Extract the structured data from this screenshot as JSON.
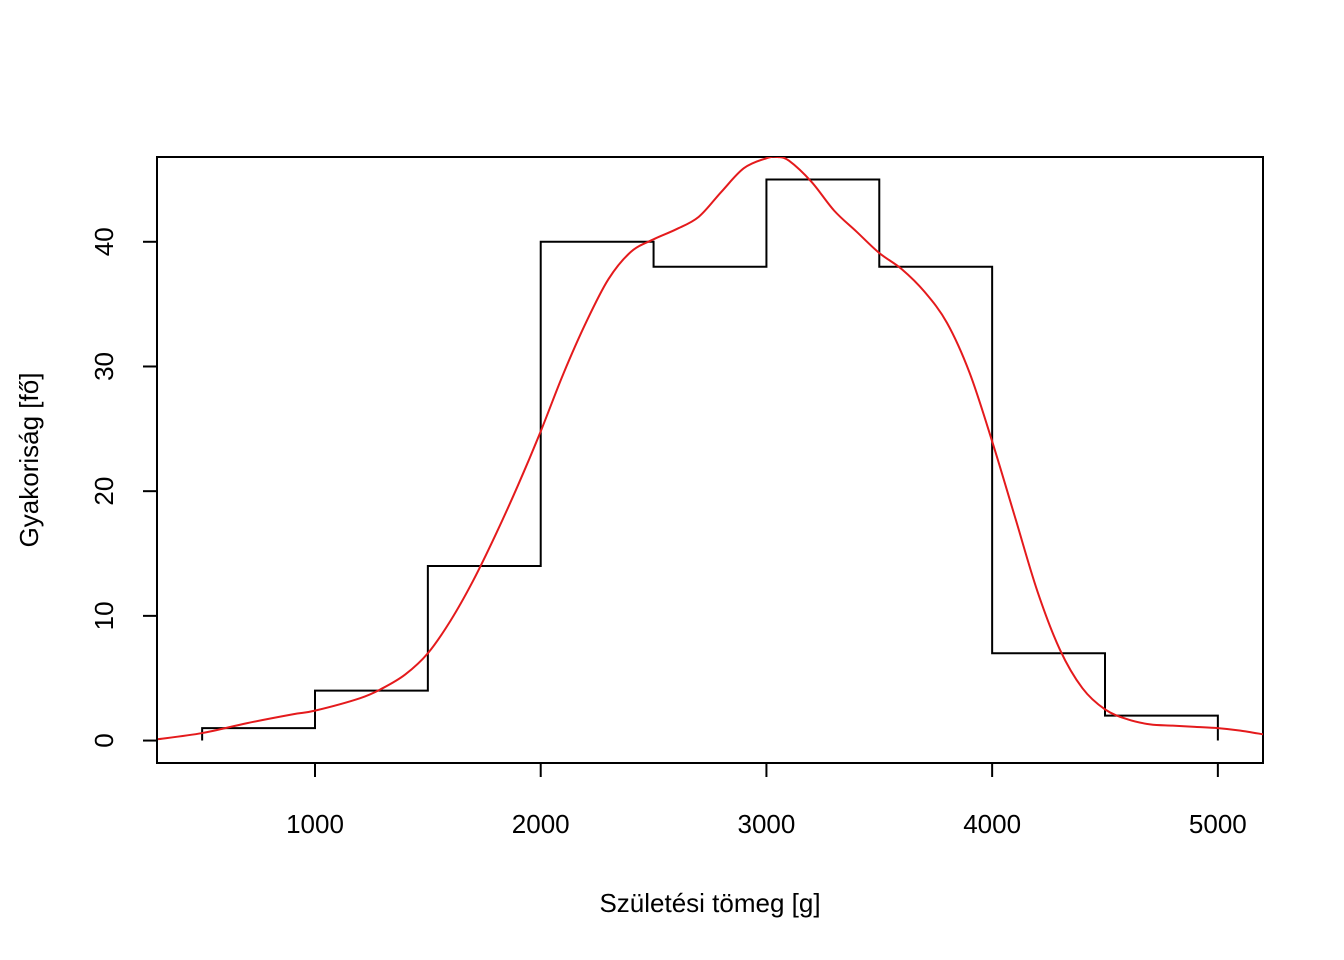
{
  "chart_data": {
    "type": "histogram-step-with-density-line",
    "xlabel": "Születési tömeg [g]",
    "ylabel": "Gyakoriság [fő]",
    "xlim": [
      300,
      5200
    ],
    "ylim": [
      -1.8,
      46.8
    ],
    "x_ticks": [
      1000,
      2000,
      3000,
      4000,
      5000
    ],
    "x_tick_labels": [
      "1000",
      "2000",
      "3000",
      "4000",
      "5000"
    ],
    "y_ticks": [
      0,
      10,
      20,
      30,
      40
    ],
    "y_tick_labels": [
      "0",
      "10",
      "20",
      "30",
      "40"
    ],
    "grid": false,
    "colors": {
      "histogram": "#000000",
      "density": "#e41a1c"
    },
    "series": [
      {
        "type": "step",
        "breaks": [
          500,
          1000,
          1500,
          2000,
          2500,
          3000,
          3500,
          4000,
          4500,
          5000
        ],
        "counts": [
          1,
          4,
          14,
          40,
          38,
          45,
          38,
          7,
          2
        ]
      },
      {
        "type": "line",
        "x": [
          300,
          500,
          700,
          900,
          1000,
          1200,
          1300,
          1400,
          1500,
          1600,
          1700,
          1800,
          1900,
          2000,
          2100,
          2200,
          2300,
          2400,
          2500,
          2600,
          2700,
          2800,
          2900,
          3000,
          3050,
          3100,
          3200,
          3300,
          3400,
          3500,
          3600,
          3700,
          3800,
          3900,
          4000,
          4100,
          4200,
          4300,
          4400,
          4500,
          4600,
          4700,
          4800,
          4900,
          5000,
          5100,
          5200
        ],
        "y": [
          0.1,
          0.6,
          1.4,
          2.1,
          2.4,
          3.4,
          4.2,
          5.3,
          7.0,
          9.6,
          12.8,
          16.5,
          20.5,
          24.8,
          29.4,
          33.5,
          37.0,
          39.2,
          40.2,
          41.0,
          42.0,
          44.0,
          45.9,
          46.7,
          46.8,
          46.5,
          44.8,
          42.5,
          40.8,
          39.1,
          37.8,
          36.0,
          33.5,
          29.5,
          24.0,
          18.0,
          12.0,
          7.3,
          4.2,
          2.5,
          1.7,
          1.3,
          1.2,
          1.1,
          1.0,
          0.8,
          0.5
        ]
      }
    ]
  }
}
